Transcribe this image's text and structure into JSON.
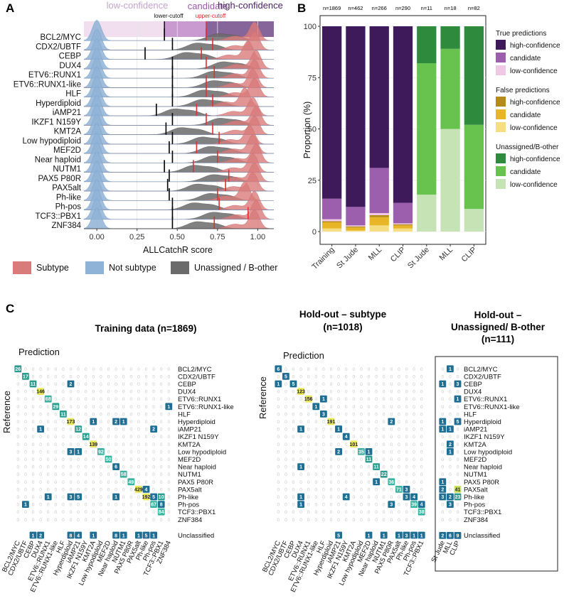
{
  "panels": {
    "a": "A",
    "b": "B",
    "c": "C"
  },
  "panelA": {
    "zones": [
      "low-confidence",
      "candidate",
      "high-confidence"
    ],
    "cutoffs": [
      "lower-cutoff",
      "upper-cutoff"
    ],
    "xlabel": "ALLCatchR score",
    "xticks": [
      "0.00",
      "0.25",
      "0.50",
      "0.75",
      "1.00"
    ],
    "legend": [
      "Subtype",
      "Not subtype",
      "Unassigned / B-other"
    ],
    "colors": {
      "subtype": "#d97b7b",
      "notsubtype": "#8fb3d6",
      "unassigned": "#6b6b6b",
      "lowzone": "#f1dff0",
      "candzone": "#c99ad0",
      "highzone": "#86659a"
    }
  },
  "chart_data": [
    {
      "type": "area",
      "title": "ALLCatchR score distributions per subtype",
      "xlabel": "ALLCatchR score",
      "xlim": [
        0,
        1.05
      ],
      "categories": [
        "BCL2/MYC",
        "CDX2/UBTF",
        "CEBP",
        "DUX4",
        "ETV6::RUNX1",
        "ETV6::RUNX1-like",
        "HLF",
        "Hyperdiploid",
        "iAMP21",
        "IKZF1 N159Y",
        "KMT2A",
        "Low hypodiploid",
        "MEF2D",
        "Near haploid",
        "NUTM1",
        "PAX5 P80R",
        "PAX5alt",
        "Ph-like",
        "Ph-pos",
        "TCF3::PBX1",
        "ZNF384"
      ],
      "lower_cutoff": [
        0.42,
        0.47,
        0.3,
        0.47,
        0.47,
        0.47,
        0.47,
        0.47,
        0.37,
        0.47,
        0.43,
        0.47,
        0.45,
        0.47,
        0.42,
        0.45,
        0.44,
        0.45,
        0.47,
        0.47,
        0.47
      ],
      "upper_cutoff": [
        0.68,
        0.72,
        0.65,
        0.68,
        0.73,
        0.68,
        0.68,
        0.72,
        0.62,
        0.68,
        0.72,
        0.76,
        0.62,
        0.75,
        0.6,
        0.82,
        0.8,
        0.75,
        0.76,
        0.94,
        0.73
      ],
      "subtype_peak": [
        0.98,
        0.98,
        0.94,
        0.99,
        0.98,
        0.97,
        0.98,
        0.92,
        0.97,
        0.99,
        0.98,
        0.95,
        0.97,
        0.99,
        0.97,
        0.98,
        0.97,
        0.92,
        0.98,
        0.99,
        0.98
      ],
      "unassigned_peak": [
        0.75,
        0.62,
        0.55,
        0.78,
        0.72,
        0.72,
        0.66,
        0.65,
        0.48,
        0.76,
        0.52,
        0.65,
        0.7,
        0.72,
        0.6,
        0.72,
        0.62,
        0.7,
        0.6,
        0.72,
        0.62
      ],
      "legend": [
        "Subtype",
        "Not subtype",
        "Unassigned / B-other"
      ]
    },
    {
      "type": "bar",
      "title": "Prediction proportions",
      "ylabel": "Proportion (%)",
      "ylim": [
        0,
        100
      ],
      "yticks": [
        "0",
        "25",
        "50",
        "75",
        "100"
      ],
      "categories": [
        "Training",
        "St Jude",
        "MLL",
        "CLIP",
        "St Jude",
        "MLL",
        "CLIP"
      ],
      "n_labels": [
        "n=1869",
        "n=462",
        "n=266",
        "n=290",
        "n=11",
        "n=18",
        "n=82"
      ],
      "series": [
        {
          "name": "True high-confidence",
          "values": [
            84,
            88,
            69,
            86,
            0,
            0,
            0
          ]
        },
        {
          "name": "True candidate",
          "values": [
            10,
            9,
            22,
            10,
            0,
            0,
            0
          ]
        },
        {
          "name": "True low-confidence",
          "values": [
            1,
            0.5,
            1,
            0.5,
            0,
            0,
            0
          ]
        },
        {
          "name": "False high-confidence",
          "values": [
            0.5,
            0.5,
            1,
            0.5,
            0,
            0,
            0
          ]
        },
        {
          "name": "False candidate",
          "values": [
            3,
            1.5,
            4,
            1.5,
            0,
            0,
            0
          ]
        },
        {
          "name": "False low-confidence",
          "values": [
            1.5,
            0.5,
            3,
            1.5,
            0,
            0,
            0
          ]
        },
        {
          "name": "Unassigned high-confidence",
          "values": [
            0,
            0,
            0,
            0,
            18,
            11,
            48
          ]
        },
        {
          "name": "Unassigned candidate",
          "values": [
            0,
            0,
            0,
            0,
            64,
            39,
            41
          ]
        },
        {
          "name": "Unassigned low-confidence",
          "values": [
            0,
            0,
            0,
            0,
            18,
            50,
            11
          ]
        }
      ],
      "legend": {
        "group1": "True predictions",
        "group2": "False predictions",
        "group3": "Unassigned/B-other",
        "items": [
          "high-confidence",
          "candidate",
          "low-confidence"
        ]
      },
      "colors": [
        "#3e1a5b",
        "#9c5fad",
        "#efc8e6",
        "#b48a19",
        "#e7b525",
        "#f7dd82",
        "#2e8b3e",
        "#67c24e",
        "#c6e3b5"
      ]
    },
    {
      "type": "heatmap",
      "title": "Confusion matrices",
      "matrix_titles": [
        "Training data (n=1869)",
        "Hold-out – subtype",
        "(n=1018)",
        "Hold-out –",
        "Unassigned/ B-other",
        "(n=111)"
      ],
      "axis_labels": {
        "prediction": "Prediction",
        "reference": "Reference"
      },
      "rows": [
        "BCL2/MYC",
        "CDX2/UBTF",
        "CEBP",
        "DUX4",
        "ETV6::RUNX1",
        "ETV6::RUNX1-like",
        "HLF",
        "Hyperdiploid",
        "iAMP21",
        "IKZF1 N159Y",
        "KMT2A",
        "Low hypodiploid",
        "MEF2D",
        "Near haploid",
        "NUTM1",
        "PAX5 P80R",
        "PAX5alt",
        "Ph-like",
        "Ph-pos",
        "TCF3::PBX1",
        "ZNF384"
      ],
      "unclassified_label": "Unclassified",
      "cohorts": [
        "St Jude",
        "MLL",
        "CLIP"
      ],
      "training_diag": [
        26,
        17,
        11,
        146,
        68,
        29,
        11,
        173,
        12,
        14,
        139,
        92,
        50,
        6,
        58,
        49,
        429,
        192,
        67,
        84,
        null
      ],
      "training_offdiag": [
        {
          "r": 2,
          "c": 7,
          "v": 2
        },
        {
          "r": 5,
          "c": 20,
          "v": 1
        },
        {
          "r": 7,
          "c": 10,
          "v": 1
        },
        {
          "r": 7,
          "c": 13,
          "v": 2
        },
        {
          "r": 7,
          "c": 14,
          "v": 1
        },
        {
          "r": 8,
          "c": 3,
          "v": 1
        },
        {
          "r": 8,
          "c": 18,
          "v": 2
        },
        {
          "r": 11,
          "c": 7,
          "v": 3
        },
        {
          "r": 11,
          "c": 8,
          "v": 1
        },
        {
          "r": 11,
          "c": 21,
          "v": 1
        },
        {
          "r": 16,
          "c": 17,
          "v": 4
        },
        {
          "r": 17,
          "c": 4,
          "v": 1
        },
        {
          "r": 17,
          "c": 7,
          "v": 3
        },
        {
          "r": 17,
          "c": 8,
          "v": 5
        },
        {
          "r": 17,
          "c": 13,
          "v": 1
        },
        {
          "r": 17,
          "c": 18,
          "v": 5
        },
        {
          "r": 17,
          "c": 19,
          "v": 10
        },
        {
          "r": 18,
          "c": 1,
          "v": 1
        },
        {
          "r": 18,
          "c": 19,
          "v": 8
        }
      ],
      "training_unclassified": [
        {
          "c": 2,
          "v": 1
        },
        {
          "c": 3,
          "v": 2
        },
        {
          "c": 7,
          "v": 8
        },
        {
          "c": 8,
          "v": 4
        },
        {
          "c": 10,
          "v": 1
        },
        {
          "c": 13,
          "v": 8
        },
        {
          "c": 14,
          "v": 1
        },
        {
          "c": 16,
          "v": 1
        },
        {
          "c": 17,
          "v": 5
        },
        {
          "c": 18,
          "v": 1
        }
      ],
      "holdout_diag": [
        6,
        5,
        5,
        123,
        156,
        1,
        3,
        191,
        1,
        4,
        101,
        35,
        11,
        11,
        22,
        36,
        71,
        75,
        39,
        38
      ],
      "holdout_offdiag": [
        {
          "r": 2,
          "c": 0,
          "v": 1
        },
        {
          "r": 4,
          "c": 6,
          "v": 1
        },
        {
          "r": 7,
          "c": 15,
          "v": 2
        },
        {
          "r": 8,
          "c": 3,
          "v": 1
        },
        {
          "r": 8,
          "c": 8,
          "v": 1
        },
        {
          "r": 11,
          "c": 8,
          "v": 2
        },
        {
          "r": 11,
          "c": 12,
          "v": 1
        },
        {
          "r": 13,
          "c": 3,
          "v": 1
        },
        {
          "r": 15,
          "c": 13,
          "v": 1
        },
        {
          "r": 16,
          "c": 17,
          "v": 3
        },
        {
          "r": 17,
          "c": 3,
          "v": 1
        },
        {
          "r": 17,
          "c": 9,
          "v": 4
        },
        {
          "r": 17,
          "c": 17,
          "v": 3
        },
        {
          "r": 17,
          "c": 18,
          "v": 4
        },
        {
          "r": 18,
          "c": 3,
          "v": 1
        },
        {
          "r": 18,
          "c": 15,
          "v": 3
        },
        {
          "r": 18,
          "c": 19,
          "v": 4
        }
      ],
      "holdout_unclassified": [
        {
          "c": 8,
          "v": 5
        },
        {
          "c": 12,
          "v": 1
        },
        {
          "c": 14,
          "v": 1
        },
        {
          "c": 16,
          "v": 1
        },
        {
          "c": 17,
          "v": 3
        },
        {
          "c": 18,
          "v": 1
        },
        {
          "c": 19,
          "v": 1
        }
      ],
      "unassigned_cells": [
        {
          "r": 0,
          "c": 1,
          "v": 1
        },
        {
          "r": 2,
          "c": 0,
          "v": 1
        },
        {
          "r": 2,
          "c": 2,
          "v": 3
        },
        {
          "r": 4,
          "c": 2,
          "v": 1
        },
        {
          "r": 7,
          "c": 0,
          "v": 1
        },
        {
          "r": 7,
          "c": 2,
          "v": 5
        },
        {
          "r": 8,
          "c": 0,
          "v": 1
        },
        {
          "r": 8,
          "c": 1,
          "v": 1
        },
        {
          "r": 10,
          "c": 1,
          "v": 2
        },
        {
          "r": 11,
          "c": 1,
          "v": 1
        },
        {
          "r": 15,
          "c": 0,
          "v": 1
        },
        {
          "r": 16,
          "c": 0,
          "v": 2
        },
        {
          "r": 16,
          "c": 2,
          "v": 41
        },
        {
          "r": 17,
          "c": 0,
          "v": 3
        },
        {
          "r": 17,
          "c": 1,
          "v": 2
        },
        {
          "r": 17,
          "c": 2,
          "v": 23
        },
        {
          "r": 18,
          "c": 1,
          "v": 3
        },
        {
          "r": 21,
          "c": 0,
          "v": 2
        },
        {
          "r": 21,
          "c": 1,
          "v": 6
        },
        {
          "r": 21,
          "c": 2,
          "v": 9
        }
      ]
    }
  ]
}
